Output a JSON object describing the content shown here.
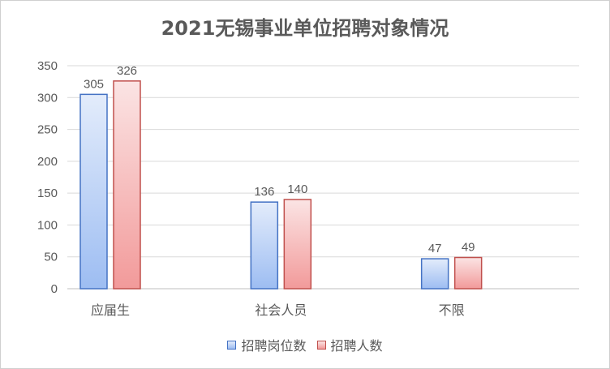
{
  "chart_data": {
    "type": "bar",
    "title": "2021无锡事业单位招聘对象情况",
    "categories": [
      "应届生",
      "社会人员",
      "不限"
    ],
    "series": [
      {
        "name": "招聘岗位数",
        "values": [
          305,
          136,
          47
        ],
        "color": "#4472c4",
        "fill_light": "#e3ecfb",
        "fill_dark": "#9dbdf2"
      },
      {
        "name": "招聘人数",
        "values": [
          326,
          140,
          49
        ],
        "color": "#c0504d",
        "fill_light": "#fbe4e4",
        "fill_dark": "#f29a9a"
      }
    ],
    "ylim": [
      0,
      350
    ],
    "yticks": [
      0,
      50,
      100,
      150,
      200,
      250,
      300,
      350
    ],
    "grid": true,
    "legend": "bottom",
    "data_labels": true
  }
}
